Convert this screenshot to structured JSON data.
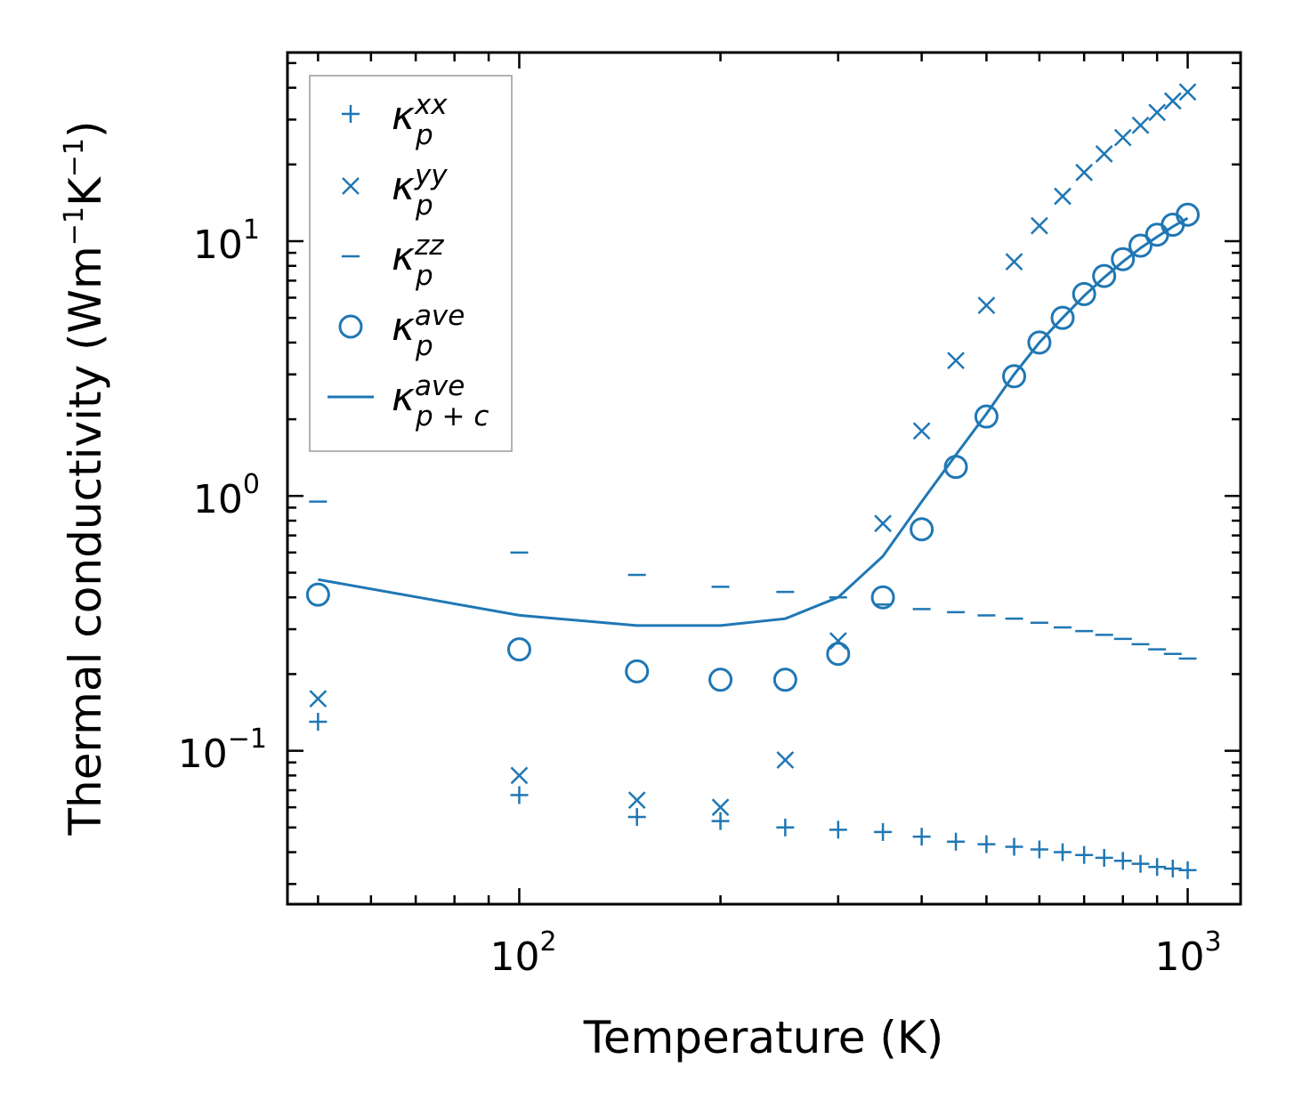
{
  "chart_data": {
    "type": "scatter",
    "xscale": "log",
    "yscale": "log",
    "xlabel": "Temperature (K)",
    "ylabel": "Thermal conductivity (Wm",
    "ylabel_exp1": "−1",
    "ylabel_mid": "K",
    "ylabel_exp2": "−1",
    "ylabel_end": ")",
    "xlim": [
      45,
      1200
    ],
    "ylim": [
      0.025,
      55
    ],
    "x_ticks": [
      {
        "base": "10",
        "exp": "2"
      },
      {
        "base": "10",
        "exp": "3"
      }
    ],
    "y_ticks": [
      {
        "base": "10",
        "exp": "−1"
      },
      {
        "base": "10",
        "exp": "0"
      },
      {
        "base": "10",
        "exp": "1"
      }
    ],
    "x": [
      50,
      100,
      150,
      200,
      250,
      300,
      350,
      400,
      450,
      500,
      550,
      600,
      650,
      700,
      750,
      800,
      850,
      900,
      950,
      1000
    ],
    "series": [
      {
        "name": "kxx",
        "label_main": "κ",
        "label_sub": "p",
        "label_sup": "xx",
        "marker": "plus",
        "values": [
          0.13,
          0.067,
          0.055,
          0.053,
          0.05,
          0.049,
          0.048,
          0.046,
          0.044,
          0.043,
          0.042,
          0.041,
          0.04,
          0.039,
          0.038,
          0.037,
          0.036,
          0.035,
          0.0345,
          0.034
        ]
      },
      {
        "name": "kyy",
        "label_main": "κ",
        "label_sub": "p",
        "label_sup": "yy",
        "marker": "cross",
        "values": [
          0.16,
          0.08,
          0.064,
          0.06,
          0.092,
          0.27,
          0.78,
          1.8,
          3.4,
          5.6,
          8.3,
          11.5,
          15,
          18.6,
          22,
          25.5,
          28.5,
          32,
          35.5,
          38.5
        ]
      },
      {
        "name": "kzz",
        "label_main": "κ",
        "label_sub": "p",
        "label_sup": "zz",
        "marker": "dash",
        "values": [
          0.95,
          0.6,
          0.49,
          0.44,
          0.42,
          0.4,
          0.375,
          0.36,
          0.35,
          0.34,
          0.33,
          0.318,
          0.305,
          0.295,
          0.285,
          0.275,
          0.262,
          0.25,
          0.24,
          0.23
        ]
      },
      {
        "name": "kave",
        "label_main": "κ",
        "label_sub": "p",
        "label_sup": "ave",
        "marker": "circle",
        "values": [
          0.41,
          0.25,
          0.205,
          0.19,
          0.19,
          0.24,
          0.4,
          0.74,
          1.3,
          2.05,
          2.95,
          4.0,
          5.0,
          6.2,
          7.3,
          8.5,
          9.6,
          10.6,
          11.6,
          12.7
        ]
      },
      {
        "name": "kave_pc",
        "label_main": "κ",
        "label_sub": "p + c",
        "label_sup": "ave",
        "marker": "line",
        "values": [
          0.47,
          0.34,
          0.31,
          0.31,
          0.33,
          0.4,
          0.58,
          0.95,
          1.45,
          2.1,
          3.0,
          4.0,
          5.0,
          6.1,
          7.2,
          8.3,
          9.4,
          10.4,
          11.4,
          12.3
        ]
      }
    ],
    "legend_position": "upper-left",
    "color": "#1f77b4"
  }
}
